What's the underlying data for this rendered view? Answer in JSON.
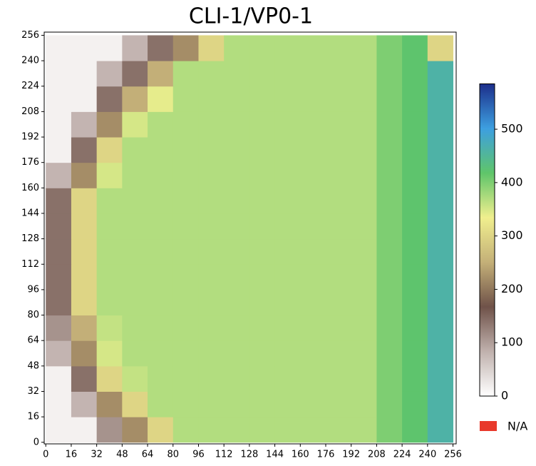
{
  "chart_data": {
    "type": "heatmap",
    "title": "CLI-1/VP0-1",
    "xbins": [
      0,
      16,
      32,
      48,
      64,
      80,
      96,
      112,
      128,
      144,
      160,
      176,
      192,
      208,
      224,
      240,
      256
    ],
    "ybins": [
      0,
      16,
      32,
      48,
      64,
      80,
      96,
      112,
      128,
      144,
      160,
      176,
      192,
      208,
      224,
      240,
      256
    ],
    "z": [
      [
        15,
        15,
        110,
        220,
        300,
        370,
        370,
        370,
        370,
        370,
        370,
        370,
        370,
        400,
        420,
        460
      ],
      [
        15,
        80,
        220,
        300,
        370,
        370,
        370,
        370,
        370,
        370,
        370,
        370,
        370,
        400,
        420,
        460
      ],
      [
        15,
        140,
        300,
        360,
        370,
        370,
        370,
        370,
        370,
        370,
        370,
        370,
        370,
        400,
        420,
        460
      ],
      [
        80,
        220,
        350,
        370,
        370,
        370,
        370,
        370,
        370,
        370,
        370,
        370,
        370,
        400,
        420,
        460
      ],
      [
        110,
        250,
        360,
        370,
        370,
        370,
        370,
        370,
        370,
        370,
        370,
        370,
        370,
        400,
        420,
        460
      ],
      [
        140,
        300,
        370,
        370,
        370,
        370,
        370,
        370,
        370,
        370,
        370,
        370,
        370,
        400,
        420,
        460
      ],
      [
        140,
        300,
        370,
        370,
        370,
        370,
        370,
        370,
        370,
        370,
        370,
        370,
        370,
        400,
        420,
        460
      ],
      [
        140,
        300,
        370,
        370,
        370,
        370,
        370,
        370,
        370,
        370,
        370,
        370,
        370,
        400,
        420,
        460
      ],
      [
        140,
        300,
        370,
        370,
        370,
        370,
        370,
        370,
        370,
        370,
        370,
        370,
        370,
        400,
        420,
        460
      ],
      [
        140,
        300,
        370,
        370,
        370,
        370,
        370,
        370,
        370,
        370,
        370,
        370,
        370,
        400,
        420,
        460
      ],
      [
        80,
        220,
        350,
        370,
        370,
        370,
        370,
        370,
        370,
        370,
        370,
        370,
        370,
        400,
        420,
        460
      ],
      [
        15,
        140,
        300,
        370,
        370,
        370,
        370,
        370,
        370,
        370,
        370,
        370,
        370,
        400,
        420,
        460
      ],
      [
        15,
        80,
        220,
        350,
        370,
        370,
        370,
        370,
        370,
        370,
        370,
        370,
        370,
        400,
        420,
        460
      ],
      [
        15,
        15,
        140,
        250,
        340,
        370,
        370,
        370,
        370,
        370,
        370,
        370,
        370,
        400,
        420,
        460
      ],
      [
        15,
        15,
        80,
        140,
        250,
        370,
        370,
        370,
        370,
        370,
        370,
        370,
        370,
        400,
        420,
        460
      ],
      [
        15,
        15,
        15,
        80,
        140,
        220,
        300,
        370,
        370,
        370,
        370,
        370,
        370,
        400,
        420,
        300
      ]
    ],
    "xlim": [
      -1,
      258
    ],
    "ylim": [
      -1,
      258
    ],
    "xticks": [
      0,
      16,
      32,
      48,
      64,
      80,
      96,
      112,
      128,
      144,
      160,
      176,
      192,
      208,
      224,
      240,
      256
    ],
    "yticks": [
      0,
      16,
      32,
      48,
      64,
      80,
      96,
      112,
      128,
      144,
      160,
      176,
      192,
      208,
      224,
      240,
      256
    ],
    "colormap": [
      "#ffffff",
      "#c0b1ad",
      "#6f5249",
      "#c4b078",
      "#f0ef8e",
      "#5fc56a",
      "#3d9fe0",
      "#1c2e8a"
    ],
    "clim": [
      0,
      585
    ],
    "cticks": [
      0,
      100,
      200,
      300,
      400,
      500
    ],
    "na_label": "N/A",
    "na_color": "#e8392b"
  }
}
